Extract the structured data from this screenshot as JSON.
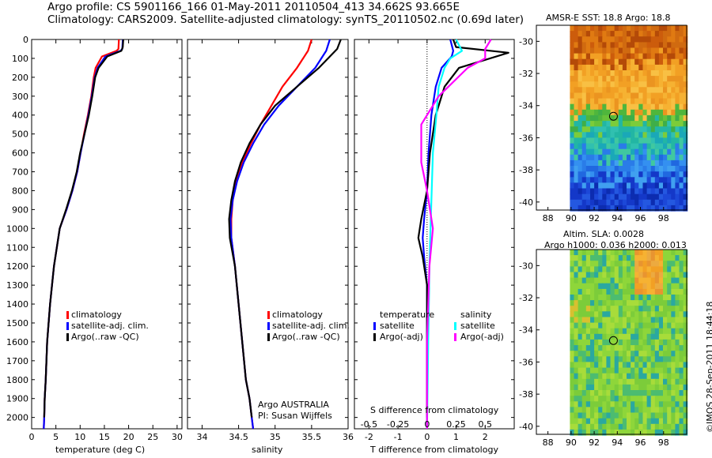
{
  "header": {
    "line1": "Argo profile: CS 5901166_166 01-May-2011 20110504_413 34.662S 93.665E",
    "line2": "Climatology: CARS2009. Satellite-adjusted climatology: synTS_20110502.nc (0.69d later)"
  },
  "colors": {
    "climatology": "#ff0000",
    "satellite": "#0000ff",
    "argo": "#000000",
    "sal_satellite": "#00ffff",
    "sal_argo": "#ff00ff"
  },
  "chart_data": [
    {
      "type": "line",
      "xlabel": "temperature (deg C)",
      "ylabel": "",
      "xlim": [
        0,
        31
      ],
      "ylim": [
        2060,
        0
      ],
      "xticks": [
        "0",
        "5",
        "10",
        "15",
        "20",
        "25",
        "30"
      ],
      "xtick_values": [
        0,
        5,
        10,
        15,
        20,
        25,
        30
      ],
      "yticks": [
        "0",
        "100",
        "200",
        "300",
        "400",
        "500",
        "600",
        "700",
        "800",
        "900",
        "1000",
        "1100",
        "1200",
        "1300",
        "1400",
        "1500",
        "1600",
        "1700",
        "1800",
        "1900",
        "2000"
      ],
      "ytick_values": [
        0,
        100,
        200,
        300,
        400,
        500,
        600,
        700,
        800,
        900,
        1000,
        1100,
        1200,
        1300,
        1400,
        1500,
        1600,
        1700,
        1800,
        1900,
        2000
      ],
      "legend": [
        "climatology",
        "satellite-adj. clim.",
        "Argo(..raw -QC)"
      ],
      "legend_placement": "lower-center",
      "series": [
        {
          "name": "climatology",
          "color": "#ff0000",
          "x": [
            18.0,
            17.9,
            17.5,
            14.5,
            13.2,
            12.8,
            12.3,
            11.6,
            10.8,
            10.1,
            9.4,
            8.4,
            7.2,
            5.8,
            4.6,
            3.8,
            3.2,
            2.9,
            2.7,
            2.6,
            2.5
          ],
          "y": [
            0,
            50,
            60,
            90,
            150,
            200,
            300,
            400,
            500,
            600,
            700,
            800,
            900,
            1000,
            1200,
            1400,
            1600,
            1800,
            1900,
            2000,
            2060
          ]
        },
        {
          "name": "satellite-adj. clim.",
          "color": "#0000ff",
          "x": [
            18.8,
            18.7,
            18.3,
            15.2,
            13.6,
            13.0,
            12.4,
            11.7,
            10.9,
            10.1,
            9.4,
            8.4,
            7.2,
            5.8,
            4.6,
            3.8,
            3.2,
            2.9,
            2.7,
            2.6,
            2.5
          ],
          "y": [
            0,
            50,
            60,
            90,
            150,
            200,
            300,
            400,
            500,
            600,
            700,
            800,
            900,
            1000,
            1200,
            1400,
            1600,
            1800,
            1900,
            2000,
            2060
          ]
        },
        {
          "name": "Argo(..raw -QC)",
          "color": "#000000",
          "x": [
            18.9,
            18.8,
            18.5,
            15.6,
            13.8,
            13.1,
            12.5,
            11.8,
            10.9,
            10.0,
            9.3,
            8.3,
            7.1,
            5.8,
            4.6,
            3.8,
            3.2,
            2.9,
            2.7,
            2.6
          ],
          "y": [
            0,
            40,
            60,
            90,
            150,
            200,
            300,
            400,
            500,
            600,
            700,
            800,
            900,
            1000,
            1200,
            1400,
            1600,
            1800,
            1900,
            2000
          ]
        }
      ]
    },
    {
      "type": "line",
      "xlabel": "salinity",
      "xlim": [
        33.8,
        36.0
      ],
      "ylim": [
        2060,
        0
      ],
      "xticks": [
        "34",
        "34.5",
        "35",
        "35.5",
        "36"
      ],
      "xtick_values": [
        34,
        34.5,
        35,
        35.5,
        36
      ],
      "legend": [
        "climatology",
        "satellite-adj. clim.",
        "Argo(..raw -QC)"
      ],
      "legend_placement": "lower-right",
      "annotation": [
        "Argo AUSTRALIA",
        "PI: Susan Wijffels"
      ],
      "series": [
        {
          "name": "climatology",
          "color": "#ff0000",
          "x": [
            35.5,
            35.45,
            35.3,
            35.1,
            34.95,
            34.8,
            34.67,
            34.55,
            34.47,
            34.42,
            34.4,
            34.4,
            34.45,
            34.5,
            34.55,
            34.6,
            34.65,
            34.68,
            34.7
          ],
          "y": [
            0,
            60,
            150,
            250,
            350,
            450,
            550,
            650,
            750,
            850,
            950,
            1050,
            1200,
            1400,
            1600,
            1800,
            1900,
            2000,
            2060
          ]
        },
        {
          "name": "satellite-adj. clim.",
          "color": "#0000ff",
          "x": [
            35.75,
            35.7,
            35.55,
            35.3,
            35.05,
            34.85,
            34.7,
            34.57,
            34.48,
            34.42,
            34.39,
            34.4,
            34.45,
            34.5,
            34.55,
            34.6,
            34.65,
            34.68,
            34.7
          ],
          "y": [
            0,
            60,
            150,
            250,
            350,
            450,
            550,
            650,
            750,
            850,
            950,
            1050,
            1200,
            1400,
            1600,
            1800,
            1900,
            2000,
            2060
          ]
        },
        {
          "name": "Argo(..raw -QC)",
          "color": "#000000",
          "x": [
            35.9,
            35.85,
            35.6,
            35.3,
            35.0,
            34.8,
            34.65,
            34.53,
            34.45,
            34.4,
            34.37,
            34.38,
            34.45,
            34.5,
            34.55,
            34.6,
            34.65,
            34.68
          ],
          "y": [
            0,
            50,
            150,
            250,
            350,
            450,
            550,
            650,
            750,
            850,
            950,
            1050,
            1200,
            1400,
            1600,
            1800,
            1900,
            2000
          ]
        }
      ]
    },
    {
      "type": "line",
      "xlabel": "T difference from climatology",
      "xlabel_top": "S difference from climatology",
      "xlim": [
        -2.5,
        3.0
      ],
      "ylim": [
        2060,
        0
      ],
      "xticks": [
        "-2",
        "-1",
        "0",
        "1",
        "2"
      ],
      "xtick_values": [
        -2,
        -1,
        0,
        1,
        2
      ],
      "xticks_top": [
        "-0.5",
        "-0.25",
        "0",
        "0.25",
        "0.5"
      ],
      "xtick_top_values": [
        -0.5,
        -0.25,
        0,
        0.25,
        0.5
      ],
      "legend_groups": [
        {
          "title": "temperature",
          "entries": [
            "satellite",
            "Argo(-adj)"
          ]
        },
        {
          "title": "salinity",
          "entries": [
            "satellite",
            "Argo(-adj)"
          ]
        }
      ],
      "legend_placement": "lower-center",
      "series": [
        {
          "name": "temperature satellite",
          "color": "#0000ff",
          "x": [
            0.8,
            0.9,
            0.85,
            0.5,
            0.3,
            0.15,
            0.05,
            0,
            -0.1,
            -0.15,
            -0.1,
            0,
            0,
            0,
            0
          ],
          "y": [
            0,
            60,
            90,
            150,
            250,
            400,
            600,
            800,
            950,
            1050,
            1150,
            1300,
            1600,
            1900,
            2060
          ]
        },
        {
          "name": "temperature Argo(-adj)",
          "color": "#000000",
          "x": [
            0.9,
            1.0,
            2.8,
            1.1,
            0.6,
            0.3,
            0.1,
            0,
            -0.2,
            -0.3,
            -0.15,
            0,
            0,
            0,
            0
          ],
          "y": [
            0,
            40,
            70,
            150,
            250,
            400,
            600,
            800,
            950,
            1050,
            1150,
            1300,
            1600,
            1900,
            2000
          ]
        },
        {
          "name": "salinity satellite",
          "color": "#00ffff",
          "x": [
            0.25,
            0.3,
            0.2,
            0.15,
            0.1,
            0.08,
            0.05,
            0.04,
            0.03,
            0.02,
            0.01,
            0
          ],
          "y": [
            0,
            60,
            100,
            150,
            250,
            400,
            600,
            800,
            1000,
            1200,
            1600,
            2060
          ]
        },
        {
          "name": "salinity Argo(-adj)",
          "color": "#ff00ff",
          "x": [
            0.55,
            0.5,
            0.5,
            0.35,
            0.1,
            -0.05,
            -0.05,
            0,
            0.05,
            0.02,
            0,
            0
          ],
          "y": [
            0,
            50,
            100,
            150,
            300,
            450,
            650,
            800,
            1000,
            1200,
            1600,
            2060
          ]
        }
      ]
    },
    {
      "type": "heatmap",
      "title": "AMSR-E SST: 18.8 Argo: 18.8",
      "xlim": [
        87,
        100
      ],
      "ylim": [
        -40.5,
        -29
      ],
      "xticks": [
        "88",
        "90",
        "92",
        "94",
        "96",
        "98"
      ],
      "xtick_values": [
        88,
        90,
        92,
        94,
        96,
        98
      ],
      "yticks": [
        "-30",
        "-32",
        "-34",
        "-36",
        "-38",
        "-40"
      ],
      "ytick_values": [
        -30,
        -32,
        -34,
        -36,
        -38,
        -40
      ],
      "marker": {
        "lon": 93.665,
        "lat": -34.662
      }
    },
    {
      "type": "heatmap",
      "title": "Altim. SLA: 0.0028",
      "subtitle": "Argo h1000: 0.036 h2000: 0.013",
      "xlim": [
        87,
        100
      ],
      "ylim": [
        -40.5,
        -29
      ],
      "xticks": [
        "88",
        "90",
        "92",
        "94",
        "96",
        "98"
      ],
      "xtick_values": [
        88,
        90,
        92,
        94,
        96,
        98
      ],
      "yticks": [
        "-30",
        "-32",
        "-34",
        "-36",
        "-38",
        "-40"
      ],
      "ytick_values": [
        -30,
        -32,
        -34,
        -36,
        -38,
        -40
      ],
      "marker": {
        "lon": 93.665,
        "lat": -34.662
      }
    }
  ],
  "footer": {
    "credit": "©IMOS 28-Sep-2011 18:44:18"
  }
}
